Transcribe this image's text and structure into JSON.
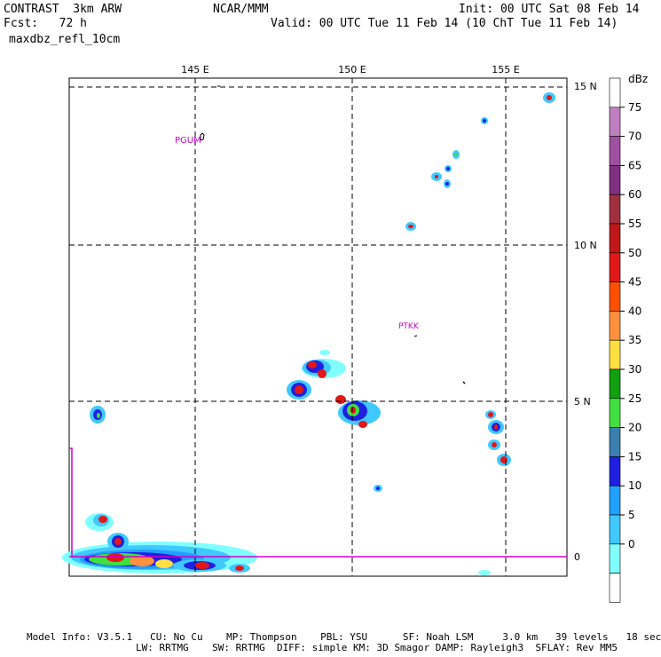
{
  "header": {
    "model": "CONTRAST  3km ARW",
    "org": "NCAR/MMM",
    "init": "Init: 00 UTC Sat 08 Feb 14",
    "fcst": "Fcst:   72 h",
    "valid": "Valid: 00 UTC Tue 11 Feb 14 (10 ChT Tue 11 Feb 14)",
    "field": "maxdbz_refl_10cm"
  },
  "map": {
    "lon_labels": [
      "145 E",
      "150 E",
      "155 E"
    ],
    "lat_labels": [
      "15 N",
      "10 N",
      "5 N",
      "0"
    ],
    "stations": [
      {
        "id": "PGUM"
      },
      {
        "id": "PTKK"
      }
    ],
    "colors": {
      "station": "#cc00cc",
      "equator": "#cc00cc"
    }
  },
  "colorbar": {
    "unit": "dBz",
    "ticks": [
      "75",
      "70",
      "65",
      "60",
      "55",
      "50",
      "45",
      "40",
      "35",
      "30",
      "25",
      "20",
      "15",
      "10",
      "5",
      "0"
    ],
    "colors": [
      "#ffffff",
      "#c080c0",
      "#a050a0",
      "#803080",
      "#a03040",
      "#c01818",
      "#e01818",
      "#ff5000",
      "#ff9040",
      "#ffe040",
      "#10a010",
      "#40e040",
      "#3a7fb0",
      "#2020e0",
      "#20a0ff",
      "#40c8ff",
      "#80ffff",
      "#ffffff"
    ]
  },
  "footer": {
    "line1": "Model Info: V3.5.1   CU: No Cu    MP: Thompson    PBL: YSU      SF: Noah LSM     3.0 km   39 levels   18 sec",
    "line2": "LW: RRTMG    SW: RRTMG  DIFF: simple KM: 3D Smagor DAMP: Rayleigh3  SFLAY: Rev MM5"
  }
}
